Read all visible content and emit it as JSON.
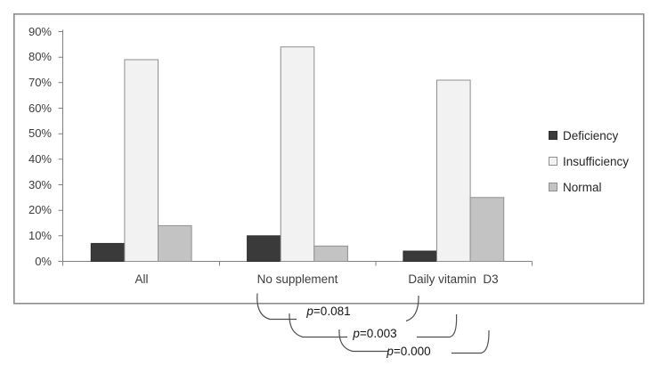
{
  "chart_data": {
    "type": "bar",
    "title": "",
    "categories": [
      "All",
      "No supplement",
      "Daily vitamin  D3"
    ],
    "series": [
      {
        "name": "Deficiency",
        "values": [
          7,
          10,
          4
        ],
        "fill": "#3a3a3a",
        "border": "#2e2e2e"
      },
      {
        "name": "Insufficiency",
        "values": [
          79,
          84,
          71
        ],
        "fill": "#f2f2f2",
        "border": "#8f8f8f"
      },
      {
        "name": "Normal",
        "values": [
          14,
          6,
          25
        ],
        "fill": "#c3c3c3",
        "border": "#8f8f8f"
      }
    ],
    "unit": "%",
    "ylim": [
      0,
      90
    ],
    "ytick_step": 10,
    "ytick_labels": [
      "90%",
      "80%",
      "70%",
      "60%",
      "50%",
      "40%",
      "30%",
      "20%",
      "10%",
      "0%"
    ],
    "grid": false,
    "legend_position": "right",
    "axis_color": "#808080",
    "frame_color": "#8c8c8c",
    "annotations": [
      {
        "var": "p",
        "rest": "=0.081",
        "text": "p=0.081"
      },
      {
        "var": "p",
        "rest": "=0.003",
        "text": "p=0.003"
      },
      {
        "var": "p",
        "rest": "=0.000",
        "text": "p=0.000"
      }
    ]
  }
}
